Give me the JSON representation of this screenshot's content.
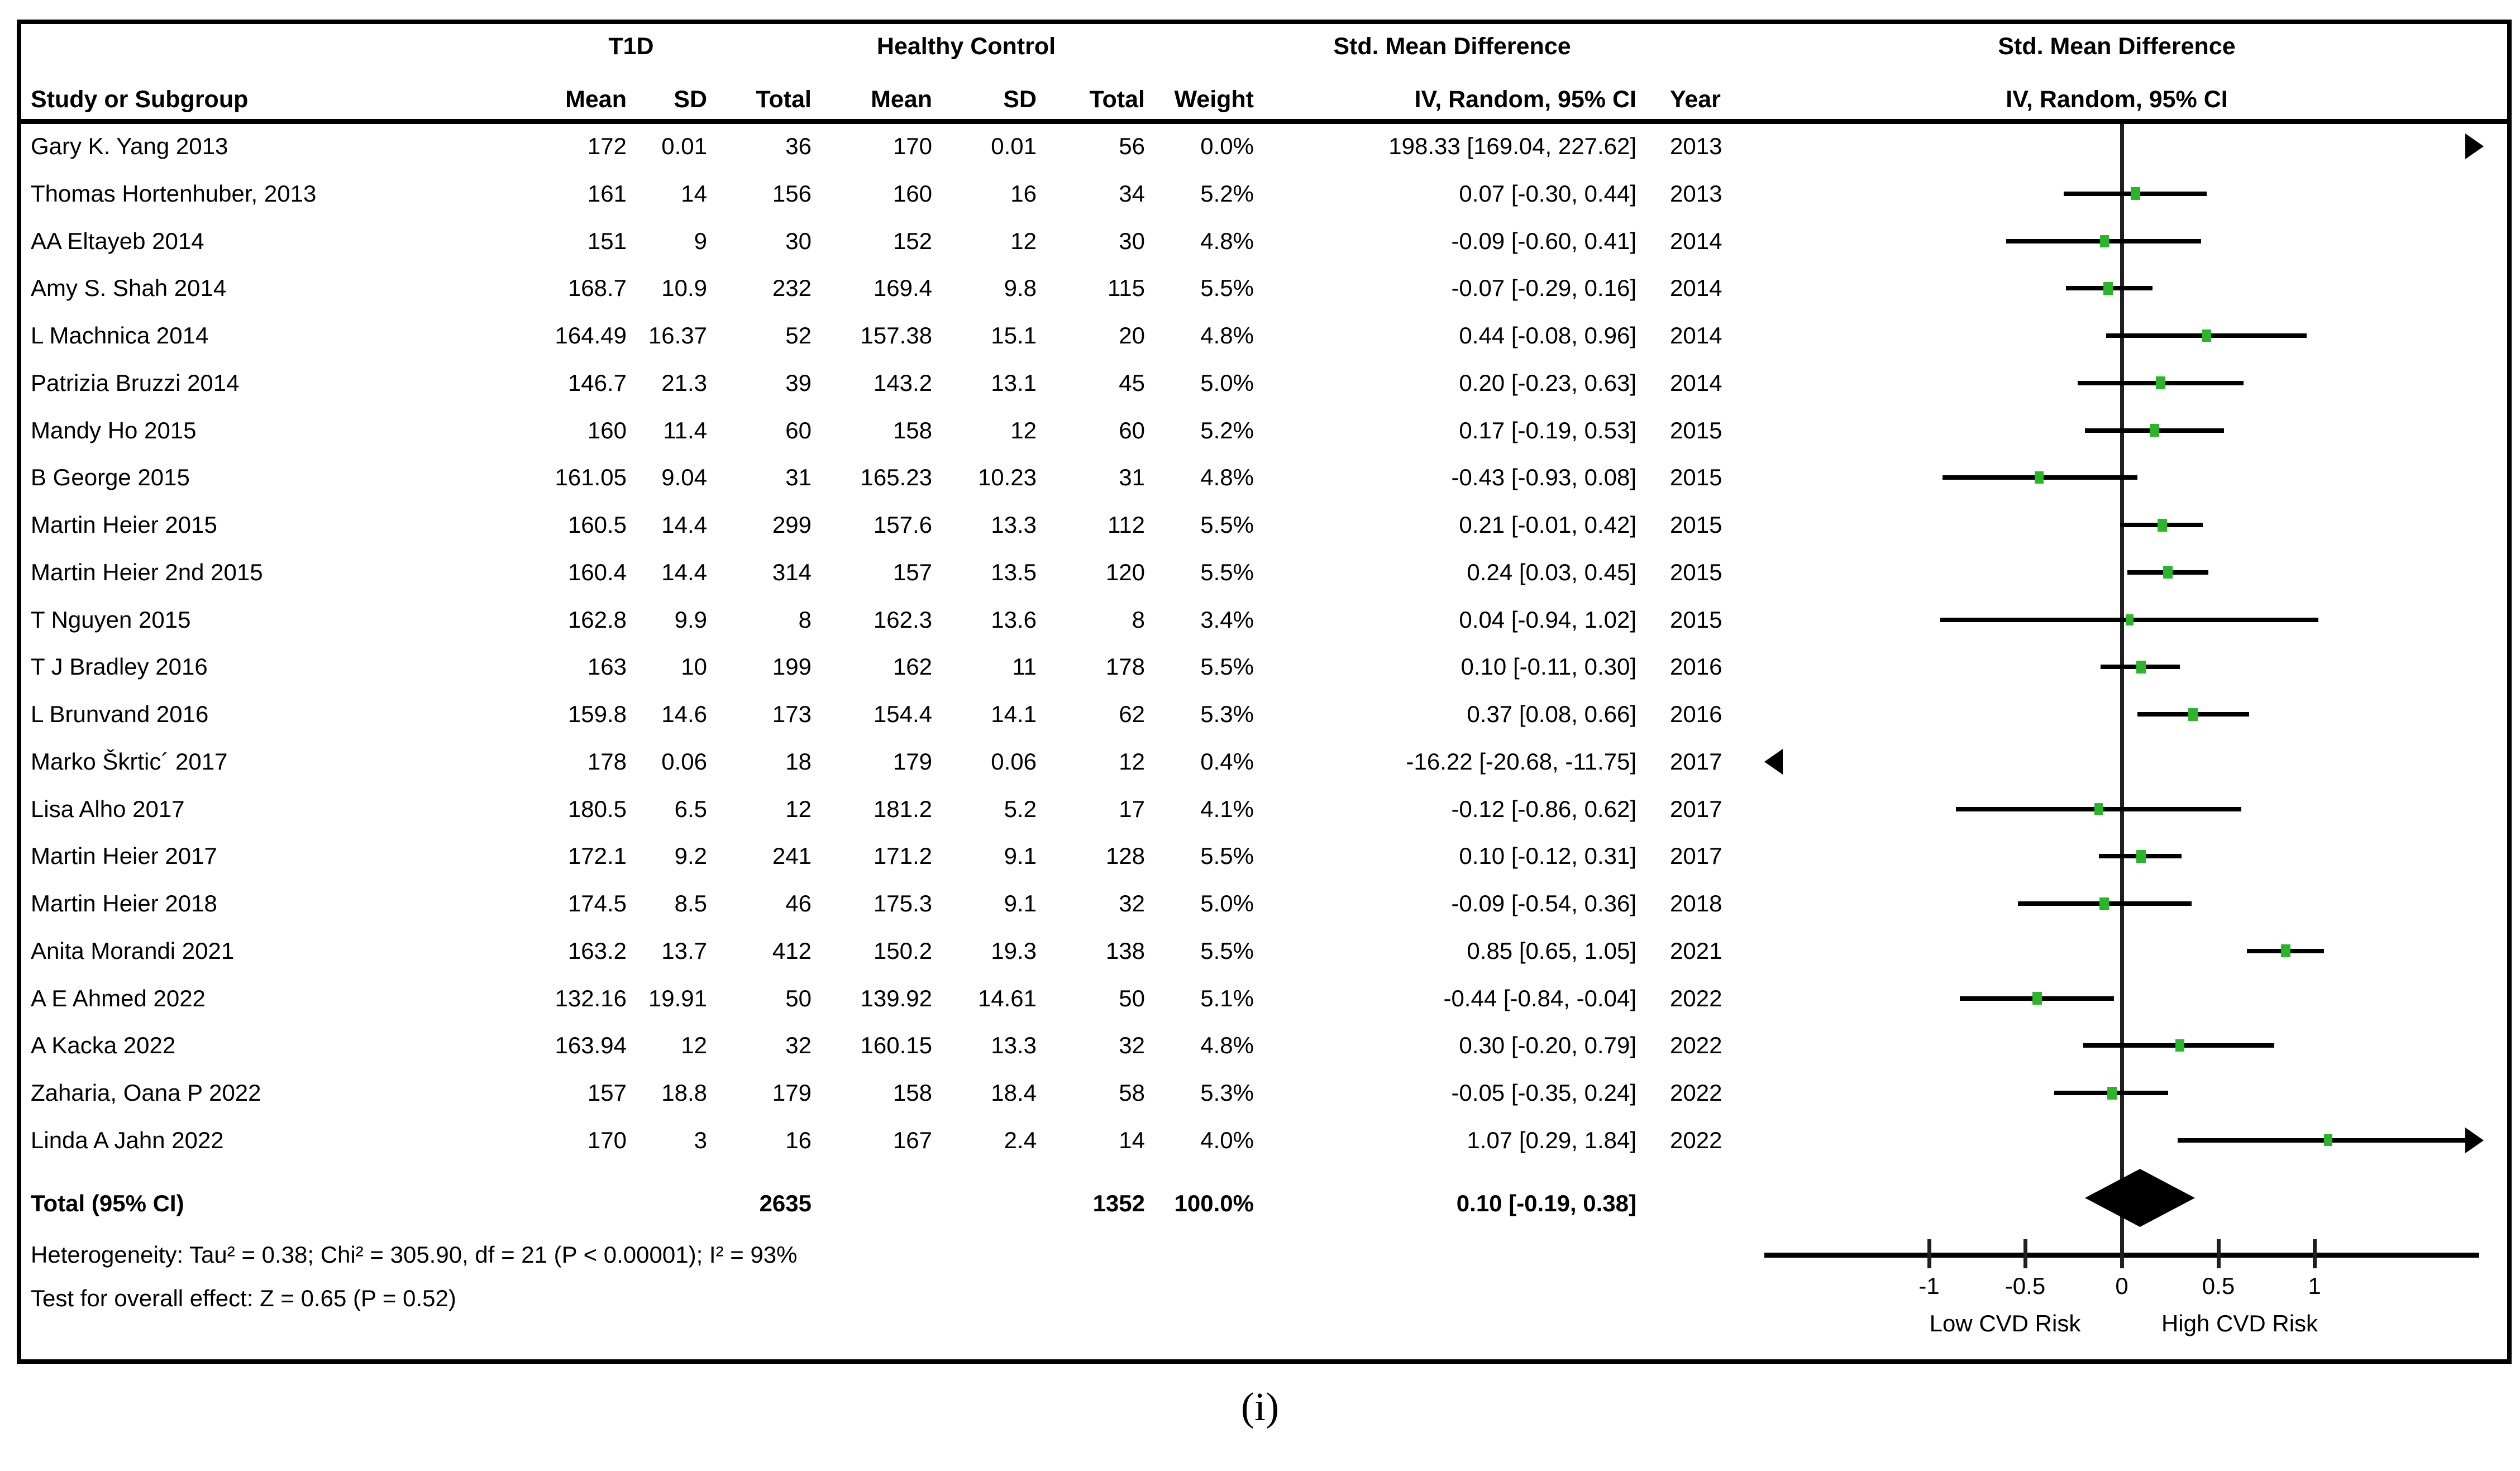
{
  "figure_caption": "(i)",
  "colors": {
    "marker_green": "#2bb52b",
    "ink": "#000000"
  },
  "headers": {
    "group_t1d": "T1D",
    "group_control": "Healthy Control",
    "group_smd_table": "Std. Mean Difference",
    "group_smd_plot": "Std. Mean Difference",
    "col_study": "Study or Subgroup",
    "col_mean": "Mean",
    "col_sd": "SD",
    "col_total": "Total",
    "col_weight": "Weight",
    "col_ci": "IV, Random, 95% CI",
    "col_year": "Year",
    "col_ci_plot": "IV, Random, 95% CI"
  },
  "chart_data": {
    "type": "forest",
    "title": "Std. Mean Difference, IV, Random, 95% CI — T1D vs Healthy Control",
    "axis": {
      "ticks": [
        -1,
        -0.5,
        0,
        0.5,
        1
      ],
      "tick_labels": [
        "-1",
        "-0.5",
        "0",
        "0.5",
        "1"
      ],
      "range": [
        -1.85,
        1.85
      ]
    },
    "xlabel_left": "Low CVD Risk",
    "xlabel_right": "High CVD Risk",
    "studies": [
      {
        "study": "Gary K. Yang 2013",
        "t1d": {
          "mean": "172",
          "sd": "0.01",
          "total": "36"
        },
        "control": {
          "mean": "170",
          "sd": "0.01",
          "total": "56"
        },
        "weight": "0.0%",
        "ci_text": "198.33 [169.04, 227.62]",
        "year": "2013",
        "est": 198.33,
        "lo": 169.04,
        "hi": 227.62,
        "offscale": "right"
      },
      {
        "study": "Thomas Hortenhuber, 2013",
        "t1d": {
          "mean": "161",
          "sd": "14",
          "total": "156"
        },
        "control": {
          "mean": "160",
          "sd": "16",
          "total": "34"
        },
        "weight": "5.2%",
        "ci_text": "0.07 [-0.30, 0.44]",
        "year": "2013",
        "est": 0.07,
        "lo": -0.3,
        "hi": 0.44,
        "offscale": null
      },
      {
        "study": "AA Eltayeb 2014",
        "t1d": {
          "mean": "151",
          "sd": "9",
          "total": "30"
        },
        "control": {
          "mean": "152",
          "sd": "12",
          "total": "30"
        },
        "weight": "4.8%",
        "ci_text": "-0.09 [-0.60, 0.41]",
        "year": "2014",
        "est": -0.09,
        "lo": -0.6,
        "hi": 0.41,
        "offscale": null
      },
      {
        "study": "Amy S. Shah 2014",
        "t1d": {
          "mean": "168.7",
          "sd": "10.9",
          "total": "232"
        },
        "control": {
          "mean": "169.4",
          "sd": "9.8",
          "total": "115"
        },
        "weight": "5.5%",
        "ci_text": "-0.07 [-0.29, 0.16]",
        "year": "2014",
        "est": -0.07,
        "lo": -0.29,
        "hi": 0.16,
        "offscale": null
      },
      {
        "study": "L Machnica 2014",
        "t1d": {
          "mean": "164.49",
          "sd": "16.37",
          "total": "52"
        },
        "control": {
          "mean": "157.38",
          "sd": "15.1",
          "total": "20"
        },
        "weight": "4.8%",
        "ci_text": "0.44 [-0.08, 0.96]",
        "year": "2014",
        "est": 0.44,
        "lo": -0.08,
        "hi": 0.96,
        "offscale": null
      },
      {
        "study": "Patrizia Bruzzi 2014",
        "t1d": {
          "mean": "146.7",
          "sd": "21.3",
          "total": "39"
        },
        "control": {
          "mean": "143.2",
          "sd": "13.1",
          "total": "45"
        },
        "weight": "5.0%",
        "ci_text": "0.20 [-0.23, 0.63]",
        "year": "2014",
        "est": 0.2,
        "lo": -0.23,
        "hi": 0.63,
        "offscale": null
      },
      {
        "study": "Mandy Ho 2015",
        "t1d": {
          "mean": "160",
          "sd": "11.4",
          "total": "60"
        },
        "control": {
          "mean": "158",
          "sd": "12",
          "total": "60"
        },
        "weight": "5.2%",
        "ci_text": "0.17 [-0.19, 0.53]",
        "year": "2015",
        "est": 0.17,
        "lo": -0.19,
        "hi": 0.53,
        "offscale": null
      },
      {
        "study": "B George 2015",
        "t1d": {
          "mean": "161.05",
          "sd": "9.04",
          "total": "31"
        },
        "control": {
          "mean": "165.23",
          "sd": "10.23",
          "total": "31"
        },
        "weight": "4.8%",
        "ci_text": "-0.43 [-0.93, 0.08]",
        "year": "2015",
        "est": -0.43,
        "lo": -0.93,
        "hi": 0.08,
        "offscale": null
      },
      {
        "study": "Martin Heier 2015",
        "t1d": {
          "mean": "160.5",
          "sd": "14.4",
          "total": "299"
        },
        "control": {
          "mean": "157.6",
          "sd": "13.3",
          "total": "112"
        },
        "weight": "5.5%",
        "ci_text": "0.21 [-0.01, 0.42]",
        "year": "2015",
        "est": 0.21,
        "lo": -0.01,
        "hi": 0.42,
        "offscale": null
      },
      {
        "study": "Martin Heier 2nd 2015",
        "t1d": {
          "mean": "160.4",
          "sd": "14.4",
          "total": "314"
        },
        "control": {
          "mean": "157",
          "sd": "13.5",
          "total": "120"
        },
        "weight": "5.5%",
        "ci_text": "0.24 [0.03, 0.45]",
        "year": "2015",
        "est": 0.24,
        "lo": 0.03,
        "hi": 0.45,
        "offscale": null
      },
      {
        "study": "T Nguyen 2015",
        "t1d": {
          "mean": "162.8",
          "sd": "9.9",
          "total": "8"
        },
        "control": {
          "mean": "162.3",
          "sd": "13.6",
          "total": "8"
        },
        "weight": "3.4%",
        "ci_text": "0.04 [-0.94, 1.02]",
        "year": "2015",
        "est": 0.04,
        "lo": -0.94,
        "hi": 1.02,
        "offscale": null
      },
      {
        "study": "T J Bradley 2016",
        "t1d": {
          "mean": "163",
          "sd": "10",
          "total": "199"
        },
        "control": {
          "mean": "162",
          "sd": "11",
          "total": "178"
        },
        "weight": "5.5%",
        "ci_text": "0.10 [-0.11, 0.30]",
        "year": "2016",
        "est": 0.1,
        "lo": -0.11,
        "hi": 0.3,
        "offscale": null
      },
      {
        "study": "L Brunvand 2016",
        "t1d": {
          "mean": "159.8",
          "sd": "14.6",
          "total": "173"
        },
        "control": {
          "mean": "154.4",
          "sd": "14.1",
          "total": "62"
        },
        "weight": "5.3%",
        "ci_text": "0.37 [0.08, 0.66]",
        "year": "2016",
        "est": 0.37,
        "lo": 0.08,
        "hi": 0.66,
        "offscale": null
      },
      {
        "study": "Marko Škrtic´ 2017",
        "t1d": {
          "mean": "178",
          "sd": "0.06",
          "total": "18"
        },
        "control": {
          "mean": "179",
          "sd": "0.06",
          "total": "12"
        },
        "weight": "0.4%",
        "ci_text": "-16.22 [-20.68, -11.75]",
        "year": "2017",
        "est": -16.22,
        "lo": -20.68,
        "hi": -11.75,
        "offscale": "left"
      },
      {
        "study": "Lisa Alho 2017",
        "t1d": {
          "mean": "180.5",
          "sd": "6.5",
          "total": "12"
        },
        "control": {
          "mean": "181.2",
          "sd": "5.2",
          "total": "17"
        },
        "weight": "4.1%",
        "ci_text": "-0.12 [-0.86, 0.62]",
        "year": "2017",
        "est": -0.12,
        "lo": -0.86,
        "hi": 0.62,
        "offscale": null
      },
      {
        "study": "Martin Heier 2017",
        "t1d": {
          "mean": "172.1",
          "sd": "9.2",
          "total": "241"
        },
        "control": {
          "mean": "171.2",
          "sd": "9.1",
          "total": "128"
        },
        "weight": "5.5%",
        "ci_text": "0.10 [-0.12, 0.31]",
        "year": "2017",
        "est": 0.1,
        "lo": -0.12,
        "hi": 0.31,
        "offscale": null
      },
      {
        "study": "Martin Heier 2018",
        "t1d": {
          "mean": "174.5",
          "sd": "8.5",
          "total": "46"
        },
        "control": {
          "mean": "175.3",
          "sd": "9.1",
          "total": "32"
        },
        "weight": "5.0%",
        "ci_text": "-0.09 [-0.54, 0.36]",
        "year": "2018",
        "est": -0.09,
        "lo": -0.54,
        "hi": 0.36,
        "offscale": null
      },
      {
        "study": "Anita Morandi 2021",
        "t1d": {
          "mean": "163.2",
          "sd": "13.7",
          "total": "412"
        },
        "control": {
          "mean": "150.2",
          "sd": "19.3",
          "total": "138"
        },
        "weight": "5.5%",
        "ci_text": "0.85 [0.65, 1.05]",
        "year": "2021",
        "est": 0.85,
        "lo": 0.65,
        "hi": 1.05,
        "offscale": null
      },
      {
        "study": "A E Ahmed 2022",
        "t1d": {
          "mean": "132.16",
          "sd": "19.91",
          "total": "50"
        },
        "control": {
          "mean": "139.92",
          "sd": "14.61",
          "total": "50"
        },
        "weight": "5.1%",
        "ci_text": "-0.44 [-0.84, -0.04]",
        "year": "2022",
        "est": -0.44,
        "lo": -0.84,
        "hi": -0.04,
        "offscale": null
      },
      {
        "study": "A Kacka 2022",
        "t1d": {
          "mean": "163.94",
          "sd": "12",
          "total": "32"
        },
        "control": {
          "mean": "160.15",
          "sd": "13.3",
          "total": "32"
        },
        "weight": "4.8%",
        "ci_text": "0.30 [-0.20, 0.79]",
        "year": "2022",
        "est": 0.3,
        "lo": -0.2,
        "hi": 0.79,
        "offscale": null
      },
      {
        "study": "Zaharia, Oana P 2022",
        "t1d": {
          "mean": "157",
          "sd": "18.8",
          "total": "179"
        },
        "control": {
          "mean": "158",
          "sd": "18.4",
          "total": "58"
        },
        "weight": "5.3%",
        "ci_text": "-0.05 [-0.35, 0.24]",
        "year": "2022",
        "est": -0.05,
        "lo": -0.35,
        "hi": 0.24,
        "offscale": null
      },
      {
        "study": "Linda A Jahn 2022",
        "t1d": {
          "mean": "170",
          "sd": "3",
          "total": "16"
        },
        "control": {
          "mean": "167",
          "sd": "2.4",
          "total": "14"
        },
        "weight": "4.0%",
        "ci_text": "1.07 [0.29, 1.84]",
        "year": "2022",
        "est": 1.07,
        "lo": 0.29,
        "hi": 1.84,
        "offscale": null
      }
    ],
    "total": {
      "label": "Total (95% CI)",
      "t1d_total": "2635",
      "control_total": "1352",
      "weight": "100.0%",
      "ci_text": "0.10 [-0.19, 0.38]",
      "est": 0.1,
      "lo": -0.19,
      "hi": 0.38
    },
    "heterogeneity": "Heterogeneity: Tau² = 0.38; Chi² = 305.90, df = 21 (P < 0.00001); I² = 93%",
    "overall_effect": "Test for overall effect: Z = 0.65 (P = 0.52)"
  }
}
